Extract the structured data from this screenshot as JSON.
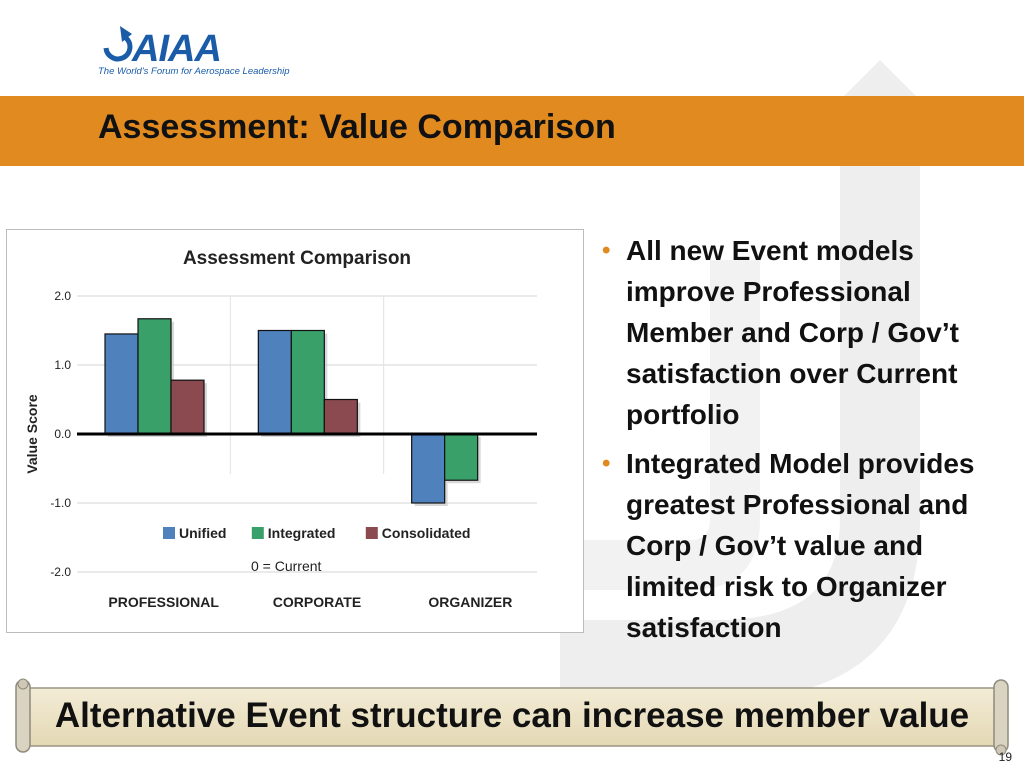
{
  "logo": {
    "text": "AIAA",
    "tagline": "The World's Forum for Aerospace Leadership"
  },
  "slide": {
    "title": "Assessment: Value Comparison",
    "page_number": "19"
  },
  "bullets": [
    "All new Event models improve Professional Member and Corp / Gov’t satisfaction over Current portfolio",
    "Integrated Model provides greatest Professional and Corp / Gov’t value and limited risk to Organizer satisfaction"
  ],
  "banner": {
    "text": "Alternative Event structure can increase member value"
  },
  "colors": {
    "accent": "#e08a20",
    "unified": "#4f81bd",
    "integrated": "#3aa06a",
    "consolidated": "#8b4a4f"
  },
  "chart_data": {
    "type": "bar",
    "title": "Assessment Comparison",
    "xlabel": "",
    "ylabel": "Value Score",
    "categories": [
      "PROFESSIONAL",
      "CORPORATE",
      "ORGANIZER"
    ],
    "series": [
      {
        "name": "Unified",
        "values": [
          1.45,
          1.5,
          -1.0
        ]
      },
      {
        "name": "Integrated",
        "values": [
          1.67,
          1.5,
          -0.67
        ]
      },
      {
        "name": "Consolidated",
        "values": [
          0.78,
          0.5,
          0
        ]
      }
    ],
    "ylim": [
      -2.0,
      2.0
    ],
    "yticks": [
      "2.0",
      "1.0",
      "0.0",
      "-1.0",
      "-2.0"
    ],
    "annotation": "0 = Current",
    "grid": true,
    "legend": "bottom"
  }
}
